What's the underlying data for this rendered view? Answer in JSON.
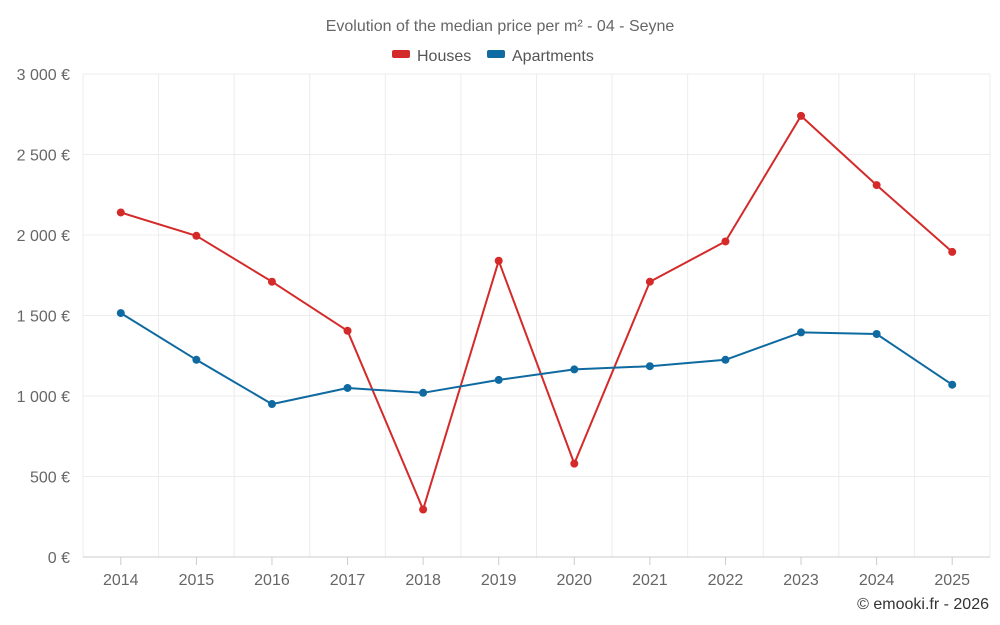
{
  "chart_data": {
    "type": "line",
    "title": "Evolution of the median price per m² - 04 - Seyne",
    "categories": [
      "2014",
      "2015",
      "2016",
      "2017",
      "2018",
      "2019",
      "2020",
      "2021",
      "2022",
      "2023",
      "2024",
      "2025"
    ],
    "series": [
      {
        "name": "Houses",
        "color": "#d42a2a",
        "values": [
          2140,
          1995,
          1710,
          1405,
          295,
          1840,
          580,
          1710,
          1960,
          2740,
          2310,
          1895
        ]
      },
      {
        "name": "Apartments",
        "color": "#0e6aa0",
        "values": [
          1515,
          1225,
          950,
          1050,
          1020,
          1100,
          1165,
          1185,
          1225,
          1395,
          1385,
          1070
        ]
      }
    ],
    "ylim": [
      0,
      3000
    ],
    "yticks": [
      0,
      500,
      1000,
      1500,
      2000,
      2500,
      3000
    ],
    "ytick_labels": [
      "0 €",
      "500 €",
      "1 000 €",
      "1 500 €",
      "2 000 €",
      "2 500 €",
      "3 000 €"
    ],
    "legend_position": "top-center",
    "grid": true,
    "credit": "© emooki.fr - 2026"
  }
}
